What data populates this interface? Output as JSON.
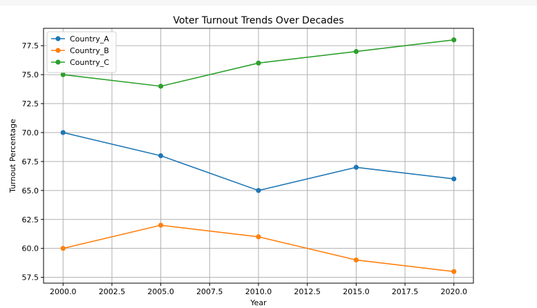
{
  "chart_data": {
    "type": "line",
    "title": "Voter Turnout Trends Over Decades",
    "xlabel": "Year",
    "ylabel": "Turnout Percentage",
    "x": [
      2000,
      2005,
      2010,
      2015,
      2020
    ],
    "xlim": [
      1999,
      2021
    ],
    "ylim": [
      57,
      79
    ],
    "xticks": [
      "2000.0",
      "2002.5",
      "2005.0",
      "2007.5",
      "2010.0",
      "2012.5",
      "2015.0",
      "2017.5",
      "2020.0"
    ],
    "yticks": [
      "57.5",
      "60.0",
      "62.5",
      "65.0",
      "67.5",
      "70.0",
      "72.5",
      "75.0",
      "77.5"
    ],
    "grid": true,
    "legend_position": "top-left",
    "series": [
      {
        "name": "Country_A",
        "color": "#1f77b4",
        "values": [
          70,
          68,
          65,
          67,
          66
        ]
      },
      {
        "name": "Country_B",
        "color": "#ff7f0e",
        "values": [
          60,
          62,
          61,
          59,
          58
        ]
      },
      {
        "name": "Country_C",
        "color": "#2ca02c",
        "values": [
          75,
          74,
          76,
          77,
          78
        ]
      }
    ]
  }
}
